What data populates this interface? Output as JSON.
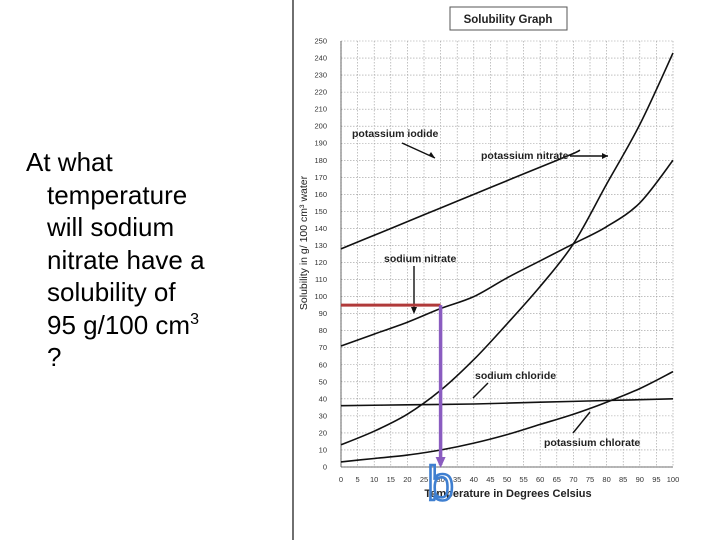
{
  "question": {
    "lines": [
      "At what",
      "temperature",
      "will sodium",
      "nitrate have a",
      "solubility of"
    ],
    "value_line": "95 g/100 cm",
    "superscript": "3",
    "end": "?"
  },
  "chart_data": {
    "type": "line",
    "title": "Solubility Graph",
    "xlabel": "Temperature in Degrees Celsius",
    "ylabel": "Solubility in g/ 100 cm³ water",
    "xlim": [
      0,
      100
    ],
    "ylim": [
      0,
      250
    ],
    "xticks": [
      0,
      5,
      10,
      15,
      20,
      25,
      30,
      35,
      40,
      45,
      50,
      55,
      60,
      65,
      70,
      75,
      80,
      85,
      90,
      95,
      100
    ],
    "yticks": [
      0,
      10,
      20,
      30,
      40,
      50,
      60,
      70,
      80,
      90,
      100,
      110,
      120,
      130,
      140,
      150,
      160,
      170,
      180,
      190,
      200,
      210,
      220,
      230,
      240,
      250
    ],
    "grid": true,
    "series": [
      {
        "name": "potassium iodide",
        "x": [
          0,
          10,
          20,
          30,
          40,
          50,
          60,
          70,
          72
        ],
        "y": [
          128,
          136,
          144,
          152,
          160,
          168,
          176,
          184,
          186
        ]
      },
      {
        "name": "potassium nitrate",
        "x": [
          0,
          10,
          20,
          30,
          40,
          50,
          60,
          70,
          80,
          90,
          100
        ],
        "y": [
          13,
          21,
          31,
          45,
          63,
          84,
          106,
          131,
          166,
          201,
          243
        ]
      },
      {
        "name": "sodium nitrate",
        "x": [
          0,
          10,
          20,
          30,
          40,
          50,
          60,
          70,
          80,
          90,
          100
        ],
        "y": [
          71,
          78,
          85,
          93,
          100,
          111,
          121,
          131,
          141,
          155,
          180
        ]
      },
      {
        "name": "sodium chloride",
        "x": [
          0,
          20,
          40,
          60,
          80,
          100
        ],
        "y": [
          36,
          36.5,
          37,
          38,
          39,
          40
        ]
      },
      {
        "name": "potassium chlorate",
        "x": [
          0,
          10,
          20,
          30,
          40,
          50,
          60,
          70,
          80,
          90,
          100
        ],
        "y": [
          3,
          5,
          7,
          10,
          14,
          19,
          25,
          31,
          38,
          46,
          56
        ]
      }
    ],
    "annotation": {
      "target_y": 95,
      "answer_x": 30,
      "answer_text": "b"
    },
    "colors": {
      "curve": "#111111",
      "grid": "#9a9a9a",
      "guide_horizontal": "#b03a3a",
      "guide_vertical": "#8a5cc0",
      "answer_mark": "#3f7fd0"
    }
  }
}
